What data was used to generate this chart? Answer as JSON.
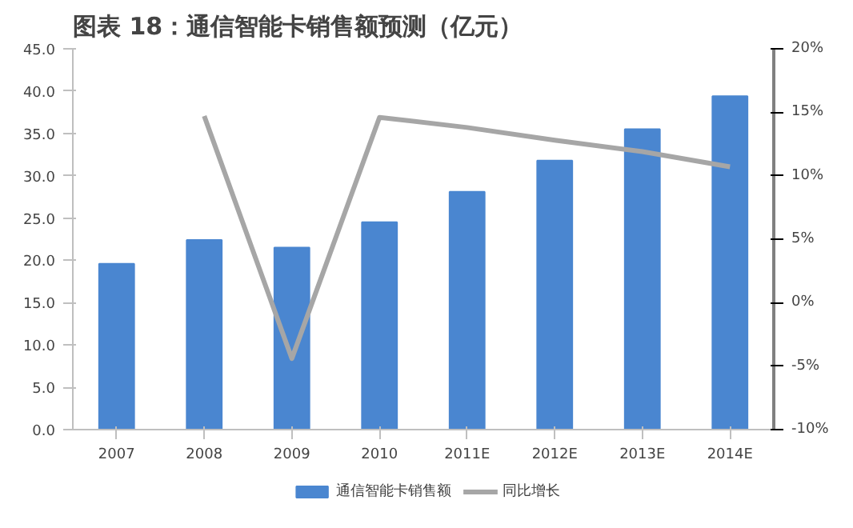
{
  "chart_data": {
    "type": "bar",
    "title": "图表 18：通信智能卡销售额预测（亿元）",
    "categories": [
      "2007",
      "2008",
      "2009",
      "2010",
      "2011E",
      "2012E",
      "2013E",
      "2014E"
    ],
    "series": [
      {
        "name": "通信智能卡销售额",
        "type": "bar",
        "color": "#4a86d0",
        "values": [
          19.6,
          22.4,
          21.5,
          24.5,
          28.1,
          31.8,
          35.5,
          39.4
        ]
      },
      {
        "name": "同比增长",
        "type": "line",
        "axis": "y2",
        "color": "#a6a6a6",
        "values": [
          null,
          14.7,
          -4.4,
          14.6,
          13.8,
          12.8,
          11.9,
          10.7
        ]
      }
    ],
    "ylim": [
      0,
      45
    ],
    "yticks": [
      {
        "value": 0,
        "label": "0.0"
      },
      {
        "value": 5,
        "label": "5.0"
      },
      {
        "value": 10,
        "label": "10.0"
      },
      {
        "value": 15,
        "label": "15.0"
      },
      {
        "value": 20,
        "label": "20.0"
      },
      {
        "value": 25,
        "label": "25.0"
      },
      {
        "value": 30,
        "label": "30.0"
      },
      {
        "value": 35,
        "label": "35.0"
      },
      {
        "value": 40,
        "label": "40.0"
      },
      {
        "value": 45,
        "label": "45.0"
      }
    ],
    "y2lim": [
      -10,
      20
    ],
    "y2ticks": [
      {
        "value": -10,
        "label": "-10%"
      },
      {
        "value": -5,
        "label": "-5%"
      },
      {
        "value": 0,
        "label": "0%"
      },
      {
        "value": 5,
        "label": "5%"
      },
      {
        "value": 10,
        "label": "10%"
      },
      {
        "value": 15,
        "label": "15%"
      },
      {
        "value": 20,
        "label": "20%"
      }
    ],
    "grid": false,
    "legend": "bottom",
    "marker": "none",
    "line_style": "solid"
  }
}
